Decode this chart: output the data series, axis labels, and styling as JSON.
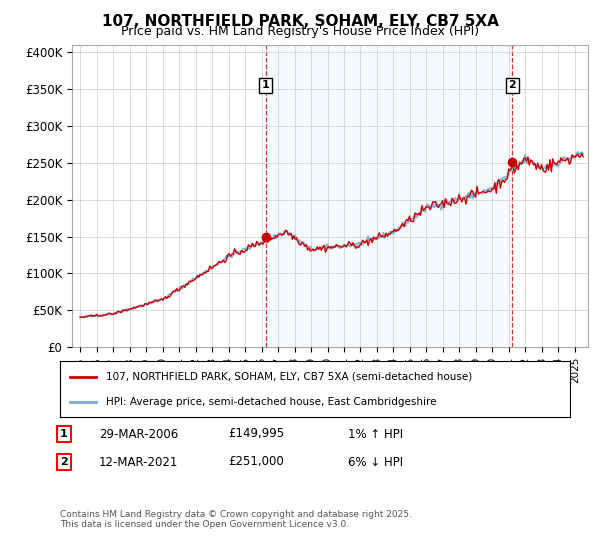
{
  "title": "107, NORTHFIELD PARK, SOHAM, ELY, CB7 5XA",
  "subtitle": "Price paid vs. HM Land Registry's House Price Index (HPI)",
  "ylabel_ticks": [
    "£0",
    "£50K",
    "£100K",
    "£150K",
    "£200K",
    "£250K",
    "£300K",
    "£350K",
    "£400K"
  ],
  "ytick_values": [
    0,
    50000,
    100000,
    150000,
    200000,
    250000,
    300000,
    350000,
    400000
  ],
  "ylim": [
    0,
    410000
  ],
  "hpi_color": "#7bafd4",
  "price_color": "#cc0000",
  "shade_color": "#ddeeff",
  "point1_date": "29-MAR-2006",
  "point1_price": 149995,
  "point1_hpi_pct": "1%",
  "point1_hpi_dir": "↑",
  "point2_date": "12-MAR-2021",
  "point2_price": 251000,
  "point2_hpi_pct": "6%",
  "point2_hpi_dir": "↓",
  "legend_line1": "107, NORTHFIELD PARK, SOHAM, ELY, CB7 5XA (semi-detached house)",
  "legend_line2": "HPI: Average price, semi-detached house, East Cambridgeshire",
  "footnote": "Contains HM Land Registry data © Crown copyright and database right 2025.\nThis data is licensed under the Open Government Licence v3.0.",
  "background_color": "#ffffff",
  "grid_color": "#cccccc",
  "sale_dates": [
    2006.24,
    2021.21
  ],
  "sale_prices": [
    149995,
    251000
  ]
}
